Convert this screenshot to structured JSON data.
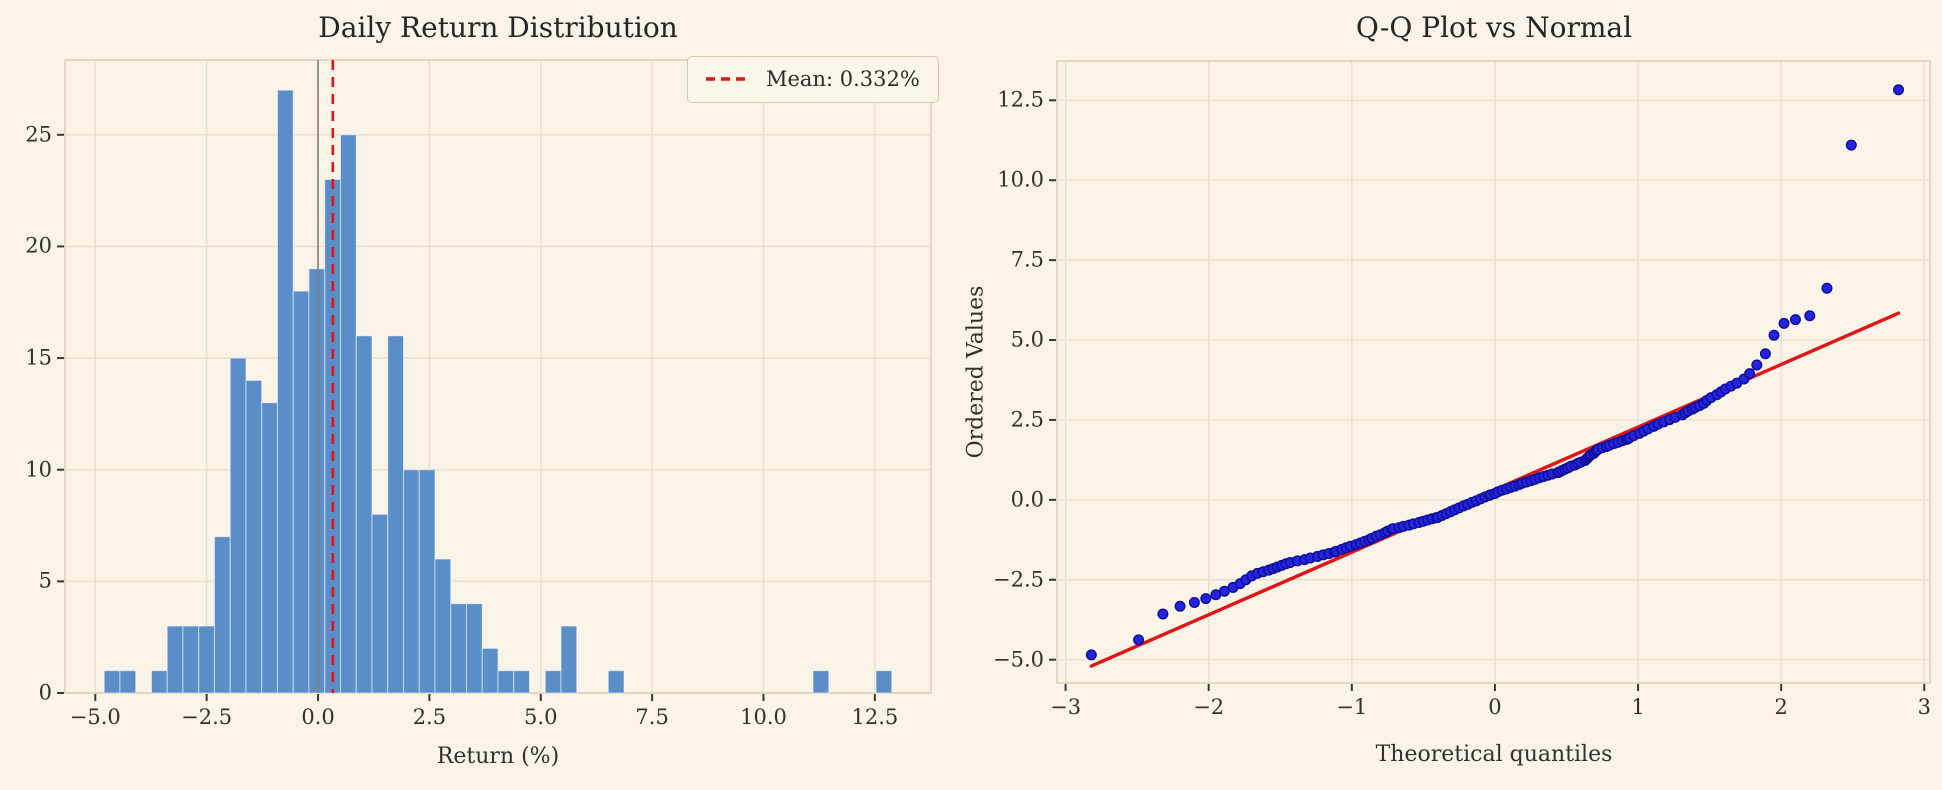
{
  "figure": {
    "bg_color": "#f9f3e8",
    "grid_color": "#e9e0cb",
    "spine_color": "#ddd3bc",
    "tick_color": "#3a3834",
    "text_color": "#33312c"
  },
  "chart_data": [
    {
      "type": "bar",
      "subtype": "histogram",
      "title": "Daily Return Distribution",
      "xlabel": "Return (%)",
      "ylabel": "",
      "legend_label": "Mean: 0.332%",
      "legend_position": "upper right",
      "grid": true,
      "xlim": [
        -5.68,
        13.76
      ],
      "ylim": [
        0,
        28.35
      ],
      "x_ticks": [
        {
          "v": -5.0,
          "label": "−5.0"
        },
        {
          "v": -2.5,
          "label": "−2.5"
        },
        {
          "v": 0.0,
          "label": "0.0"
        },
        {
          "v": 2.5,
          "label": "2.5"
        },
        {
          "v": 5.0,
          "label": "5.0"
        },
        {
          "v": 7.5,
          "label": "7.5"
        },
        {
          "v": 10.0,
          "label": "10.0"
        },
        {
          "v": 12.5,
          "label": "12.5"
        }
      ],
      "y_ticks": [
        {
          "v": 0,
          "label": "0"
        },
        {
          "v": 5,
          "label": "5"
        },
        {
          "v": 10,
          "label": "10"
        },
        {
          "v": 15,
          "label": "15"
        },
        {
          "v": 20,
          "label": "20"
        },
        {
          "v": 25,
          "label": "25"
        }
      ],
      "bin_start": -4.8,
      "bin_width": 0.3536,
      "counts": [
        1,
        1,
        0,
        1,
        3,
        3,
        3,
        7,
        15,
        14,
        13,
        27,
        18,
        19,
        23,
        25,
        16,
        8,
        16,
        10,
        10,
        6,
        4,
        4,
        2,
        1,
        1,
        0,
        1,
        3,
        0,
        0,
        1,
        0,
        0,
        0,
        0,
        0,
        0,
        0,
        0,
        0,
        0,
        0,
        0,
        1,
        0,
        0,
        0,
        1
      ],
      "mean_pct": 0.332,
      "mean_line_x": 0.332,
      "zero_line_x": 0.0,
      "bar_color": "#5b8ec9",
      "bar_edge_color": "rgba(255,255,255,0.55)",
      "mean_line_color": "#e01515",
      "zero_line_color": "#808080"
    },
    {
      "type": "scatter",
      "subtype": "qq-plot",
      "title": "Q-Q Plot vs Normal",
      "xlabel": "Theoretical quantiles",
      "ylabel": "Ordered Values",
      "grid": true,
      "xlim": [
        -3.06,
        3.04
      ],
      "ylim": [
        -5.73,
        13.73
      ],
      "x_ticks": [
        {
          "v": -3,
          "label": "−3"
        },
        {
          "v": -2,
          "label": "−2"
        },
        {
          "v": -1,
          "label": "−1"
        },
        {
          "v": 0,
          "label": "0"
        },
        {
          "v": 1,
          "label": "1"
        },
        {
          "v": 2,
          "label": "2"
        },
        {
          "v": 3,
          "label": "3"
        }
      ],
      "y_ticks": [
        {
          "v": -5.0,
          "label": "−5.0"
        },
        {
          "v": -2.5,
          "label": "−2.5"
        },
        {
          "v": 0.0,
          "label": "0.0"
        },
        {
          "v": 2.5,
          "label": "2.5"
        },
        {
          "v": 5.0,
          "label": "5.0"
        },
        {
          "v": 7.5,
          "label": "7.5"
        },
        {
          "v": 10.0,
          "label": "10.0"
        },
        {
          "v": 12.5,
          "label": "12.5"
        }
      ],
      "fit_line": {
        "x1": -2.82,
        "y1": -5.2,
        "x2": 2.82,
        "y2": 5.84,
        "color": "#e01515"
      },
      "point_color": "#2424dd",
      "point_edge_color": "#0d0d99",
      "point_radius": 4.8,
      "points": [
        [
          -2.82,
          -4.85
        ],
        [
          -2.49,
          -4.38
        ],
        [
          -2.32,
          -3.57
        ],
        [
          -2.2,
          -3.33
        ],
        [
          -2.1,
          -3.21
        ],
        [
          -2.02,
          -3.09
        ],
        [
          -1.95,
          -2.97
        ],
        [
          -1.89,
          -2.86
        ],
        [
          -1.83,
          -2.74
        ],
        [
          -1.78,
          -2.62
        ],
        [
          -1.74,
          -2.5
        ],
        [
          -1.7,
          -2.38
        ],
        [
          -1.66,
          -2.3
        ],
        [
          -1.62,
          -2.25
        ],
        [
          -1.58,
          -2.2
        ],
        [
          -1.55,
          -2.15
        ],
        [
          -1.52,
          -2.1
        ],
        [
          -1.49,
          -2.05
        ],
        [
          -1.46,
          -2.0
        ],
        [
          -1.43,
          -1.96
        ],
        [
          -1.38,
          -1.91
        ],
        [
          -1.33,
          -1.87
        ],
        [
          -1.29,
          -1.82
        ],
        [
          -1.24,
          -1.77
        ],
        [
          -1.2,
          -1.72
        ],
        [
          -1.16,
          -1.68
        ],
        [
          -1.12,
          -1.63
        ],
        [
          -1.11,
          -1.61
        ],
        [
          -1.07,
          -1.55
        ],
        [
          -1.04,
          -1.5
        ],
        [
          -1.01,
          -1.45
        ],
        [
          -0.97,
          -1.4
        ],
        [
          -0.94,
          -1.35
        ],
        [
          -0.91,
          -1.3
        ],
        [
          -0.88,
          -1.25
        ],
        [
          -0.86,
          -1.2
        ],
        [
          -0.83,
          -1.14
        ],
        [
          -0.8,
          -1.09
        ],
        [
          -0.77,
          -1.03
        ],
        [
          -0.75,
          -0.98
        ],
        [
          -0.72,
          -0.92
        ],
        [
          -0.71,
          -0.9
        ],
        [
          -0.67,
          -0.87
        ],
        [
          -0.64,
          -0.83
        ],
        [
          -0.6,
          -0.79
        ],
        [
          -0.57,
          -0.75
        ],
        [
          -0.53,
          -0.71
        ],
        [
          -0.5,
          -0.67
        ],
        [
          -0.47,
          -0.63
        ],
        [
          -0.44,
          -0.59
        ],
        [
          -0.41,
          -0.56
        ],
        [
          -0.4,
          -0.55
        ],
        [
          -0.37,
          -0.49
        ],
        [
          -0.34,
          -0.43
        ],
        [
          -0.31,
          -0.37
        ],
        [
          -0.28,
          -0.31
        ],
        [
          -0.25,
          -0.25
        ],
        [
          -0.22,
          -0.19
        ],
        [
          -0.19,
          -0.14
        ],
        [
          -0.16,
          -0.08
        ],
        [
          -0.13,
          -0.03
        ],
        [
          -0.1,
          0.03
        ],
        [
          -0.07,
          0.09
        ],
        [
          -0.04,
          0.14
        ],
        [
          -0.03,
          0.16
        ],
        [
          0.0,
          0.2
        ],
        [
          0.02,
          0.25
        ],
        [
          0.05,
          0.3
        ],
        [
          0.08,
          0.34
        ],
        [
          0.11,
          0.39
        ],
        [
          0.14,
          0.43
        ],
        [
          0.17,
          0.48
        ],
        [
          0.19,
          0.52
        ],
        [
          0.22,
          0.56
        ],
        [
          0.25,
          0.6
        ],
        [
          0.28,
          0.64
        ],
        [
          0.31,
          0.69
        ],
        [
          0.34,
          0.73
        ],
        [
          0.37,
          0.77
        ],
        [
          0.4,
          0.81
        ],
        [
          0.44,
          0.85
        ],
        [
          0.45,
          0.87
        ],
        [
          0.47,
          0.92
        ],
        [
          0.49,
          0.96
        ],
        [
          0.51,
          1.0
        ],
        [
          0.53,
          1.05
        ],
        [
          0.56,
          1.09
        ],
        [
          0.58,
          1.14
        ],
        [
          0.6,
          1.18
        ],
        [
          0.63,
          1.23
        ],
        [
          0.64,
          1.28
        ],
        [
          0.65,
          1.32
        ],
        [
          0.66,
          1.37
        ],
        [
          0.67,
          1.41
        ],
        [
          0.69,
          1.45
        ],
        [
          0.7,
          1.5
        ],
        [
          0.71,
          1.54
        ],
        [
          0.72,
          1.58
        ],
        [
          0.75,
          1.63
        ],
        [
          0.78,
          1.67
        ],
        [
          0.8,
          1.71
        ],
        [
          0.83,
          1.76
        ],
        [
          0.86,
          1.8
        ],
        [
          0.89,
          1.85
        ],
        [
          0.92,
          1.89
        ],
        [
          0.93,
          1.91
        ],
        [
          0.94,
          1.94
        ],
        [
          0.97,
          2.01
        ],
        [
          1.01,
          2.08
        ],
        [
          1.04,
          2.15
        ],
        [
          1.07,
          2.22
        ],
        [
          1.11,
          2.3
        ],
        [
          1.14,
          2.37
        ],
        [
          1.18,
          2.44
        ],
        [
          1.22,
          2.51
        ],
        [
          1.26,
          2.58
        ],
        [
          1.31,
          2.66
        ],
        [
          1.33,
          2.72
        ],
        [
          1.35,
          2.78
        ],
        [
          1.38,
          2.84
        ],
        [
          1.4,
          2.89
        ],
        [
          1.43,
          2.95
        ],
        [
          1.46,
          3.02
        ],
        [
          1.48,
          3.11
        ],
        [
          1.51,
          3.2
        ],
        [
          1.55,
          3.29
        ],
        [
          1.58,
          3.38
        ],
        [
          1.61,
          3.47
        ],
        [
          1.65,
          3.56
        ],
        [
          1.69,
          3.65
        ],
        [
          1.74,
          3.78
        ],
        [
          1.78,
          3.95
        ],
        [
          1.83,
          4.22
        ],
        [
          1.89,
          4.57
        ],
        [
          1.95,
          5.15
        ],
        [
          2.02,
          5.52
        ],
        [
          2.1,
          5.64
        ],
        [
          2.2,
          5.76
        ],
        [
          2.32,
          6.62
        ],
        [
          2.49,
          11.1
        ],
        [
          2.82,
          12.83
        ]
      ]
    }
  ]
}
